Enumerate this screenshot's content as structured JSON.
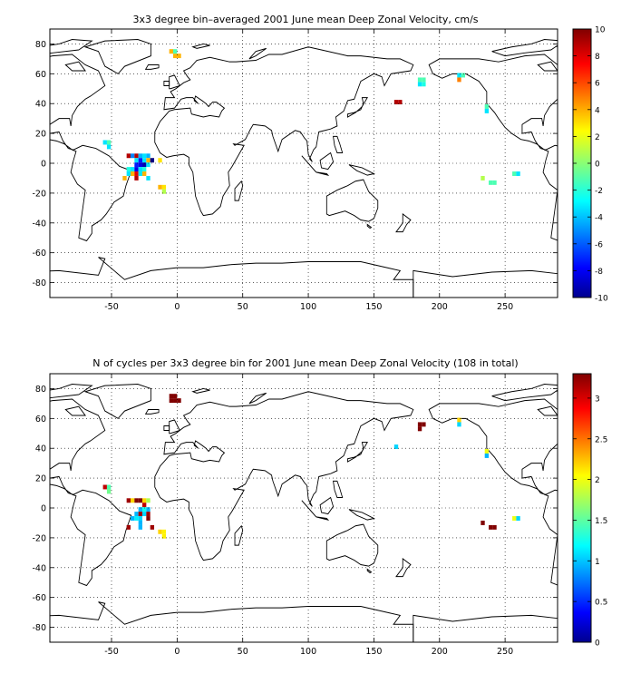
{
  "panels": [
    {
      "title": "3x3 degree bin–averaged 2001 June mean Deep Zonal Velocity, cm/s",
      "colorbar": {
        "min": -10,
        "max": 10,
        "ticks": [
          "10",
          "8",
          "6",
          "4",
          "2",
          "0",
          "-2",
          "-4",
          "-6",
          "-8",
          "-10"
        ]
      }
    },
    {
      "title": "N of cycles per 3x3 degree bin for 2001 June mean Deep Zonal Velocity (108 in total)",
      "colorbar": {
        "min": 0,
        "max": 3.3,
        "ticks": [
          "3",
          "2.5",
          "2",
          "1.5",
          "1",
          "0.5",
          "0"
        ]
      }
    }
  ],
  "axes": {
    "xticks": [
      "-50",
      "0",
      "50",
      "100",
      "150",
      "200",
      "250"
    ],
    "yticks": [
      "80",
      "60",
      "40",
      "20",
      "0",
      "-20",
      "-40",
      "-60",
      "-80"
    ],
    "xlim": [
      -97,
      290
    ],
    "ylim": [
      -90,
      90
    ],
    "grid": "dotted"
  },
  "chart_data": [
    {
      "type": "heatmap",
      "title": "3x3 degree bin–averaged 2001 June mean Deep Zonal Velocity, cm/s",
      "xlabel": "",
      "ylabel": "",
      "xlim": [
        -97,
        290
      ],
      "ylim": [
        -90,
        90
      ],
      "grid": true,
      "colorbar": {
        "min": -10,
        "max": 10,
        "label": ""
      },
      "bins": [
        {
          "lon": -4.5,
          "lat": 75,
          "v": 4
        },
        {
          "lon": -1.5,
          "lat": 72,
          "v": 4
        },
        {
          "lon": -1.5,
          "lat": 75,
          "v": -1
        },
        {
          "lon": 1.5,
          "lat": 72,
          "v": 4
        },
        {
          "lon": -55,
          "lat": 14,
          "v": -3
        },
        {
          "lon": -52,
          "lat": 11,
          "v": -3
        },
        {
          "lon": -52,
          "lat": 14,
          "v": -1
        },
        {
          "lon": -37,
          "lat": 5,
          "v": 9
        },
        {
          "lon": -34,
          "lat": 5,
          "v": -5
        },
        {
          "lon": -31,
          "lat": 5,
          "v": 9
        },
        {
          "lon": -28,
          "lat": 5,
          "v": -4
        },
        {
          "lon": -25,
          "lat": 5,
          "v": -3
        },
        {
          "lon": -22,
          "lat": 5,
          "v": -4
        },
        {
          "lon": -31,
          "lat": 2,
          "v": -3
        },
        {
          "lon": -28,
          "lat": 2,
          "v": -7
        },
        {
          "lon": -25,
          "lat": 2,
          "v": -3
        },
        {
          "lon": -22,
          "lat": 2,
          "v": 4
        },
        {
          "lon": -19,
          "lat": 2,
          "v": -10
        },
        {
          "lon": -31,
          "lat": -1,
          "v": -7
        },
        {
          "lon": -28,
          "lat": -1,
          "v": -8
        },
        {
          "lon": -25,
          "lat": -1,
          "v": -9
        },
        {
          "lon": -22,
          "lat": -1,
          "v": -3
        },
        {
          "lon": -37,
          "lat": -4,
          "v": -2
        },
        {
          "lon": -34,
          "lat": -4,
          "v": -3
        },
        {
          "lon": -31,
          "lat": -4,
          "v": -8
        },
        {
          "lon": -28,
          "lat": -4,
          "v": -3
        },
        {
          "lon": -25,
          "lat": -4,
          "v": -2
        },
        {
          "lon": -37,
          "lat": -7,
          "v": -3
        },
        {
          "lon": -34,
          "lat": -7,
          "v": 4
        },
        {
          "lon": -31,
          "lat": -7,
          "v": 8
        },
        {
          "lon": -28,
          "lat": -7,
          "v": -3
        },
        {
          "lon": -25,
          "lat": -7,
          "v": 4
        },
        {
          "lon": -40,
          "lat": -10,
          "v": 4
        },
        {
          "lon": -31,
          "lat": -10,
          "v": 9
        },
        {
          "lon": -22,
          "lat": -10,
          "v": -3
        },
        {
          "lon": -13,
          "lat": 2,
          "v": 3
        },
        {
          "lon": -10,
          "lat": -16,
          "v": 3
        },
        {
          "lon": -13,
          "lat": -16,
          "v": 4
        },
        {
          "lon": -10,
          "lat": -19,
          "v": 1
        },
        {
          "lon": 167,
          "lat": 41,
          "v": 9
        },
        {
          "lon": 170,
          "lat": 41,
          "v": 9
        },
        {
          "lon": 185,
          "lat": 53,
          "v": -3
        },
        {
          "lon": 188,
          "lat": 53,
          "v": -2
        },
        {
          "lon": 185,
          "lat": 56,
          "v": -1
        },
        {
          "lon": 188,
          "lat": 56,
          "v": -1
        },
        {
          "lon": 215,
          "lat": 59,
          "v": -3
        },
        {
          "lon": 218,
          "lat": 59,
          "v": -1
        },
        {
          "lon": 215,
          "lat": 56,
          "v": 5
        },
        {
          "lon": 236,
          "lat": 38,
          "v": -1
        },
        {
          "lon": 236,
          "lat": 35,
          "v": -3
        },
        {
          "lon": 233,
          "lat": -10,
          "v": 1
        },
        {
          "lon": 239,
          "lat": -13,
          "v": -1
        },
        {
          "lon": 242,
          "lat": -13,
          "v": -1
        },
        {
          "lon": 257,
          "lat": -7,
          "v": -1
        },
        {
          "lon": 260,
          "lat": -7,
          "v": -3
        }
      ]
    },
    {
      "type": "heatmap",
      "title": "N of cycles per 3x3 degree bin for 2001 June mean Deep Zonal Velocity (108 in total)",
      "xlabel": "",
      "ylabel": "",
      "xlim": [
        -97,
        290
      ],
      "ylim": [
        -90,
        90
      ],
      "grid": true,
      "colorbar": {
        "min": 0,
        "max": 3.3,
        "label": ""
      },
      "bins": [
        {
          "lon": -4.5,
          "lat": 75,
          "v": 3.3
        },
        {
          "lon": -1.5,
          "lat": 75,
          "v": 3.3
        },
        {
          "lon": -4.5,
          "lat": 72,
          "v": 3.3
        },
        {
          "lon": -1.5,
          "lat": 72,
          "v": 3.3
        },
        {
          "lon": 1.5,
          "lat": 72,
          "v": 3.3
        },
        {
          "lon": -55,
          "lat": 14,
          "v": 3.1
        },
        {
          "lon": -52,
          "lat": 11,
          "v": 1.6
        },
        {
          "lon": -52,
          "lat": 14,
          "v": 1.5
        },
        {
          "lon": -37,
          "lat": 5,
          "v": 3.2
        },
        {
          "lon": -34,
          "lat": 5,
          "v": 2.2
        },
        {
          "lon": -31,
          "lat": 5,
          "v": 3.3
        },
        {
          "lon": -28,
          "lat": 5,
          "v": 3.3
        },
        {
          "lon": -25,
          "lat": 5,
          "v": 2.2
        },
        {
          "lon": -22,
          "lat": 5,
          "v": 1.8
        },
        {
          "lon": -25,
          "lat": 2,
          "v": 3.1
        },
        {
          "lon": -28,
          "lat": -1,
          "v": 1.0
        },
        {
          "lon": -25,
          "lat": -1,
          "v": 1.3
        },
        {
          "lon": -22,
          "lat": -1,
          "v": 1.0
        },
        {
          "lon": -31,
          "lat": -4,
          "v": 1.0
        },
        {
          "lon": -28,
          "lat": -4,
          "v": 3.2
        },
        {
          "lon": -25,
          "lat": -4,
          "v": 1.1
        },
        {
          "lon": -22,
          "lat": -4,
          "v": 3.2
        },
        {
          "lon": -34,
          "lat": -7,
          "v": 1.0
        },
        {
          "lon": -31,
          "lat": -7,
          "v": 1.2
        },
        {
          "lon": -28,
          "lat": -7,
          "v": 1.1
        },
        {
          "lon": -22,
          "lat": -7,
          "v": 3.3
        },
        {
          "lon": -37,
          "lat": -13,
          "v": 3.2
        },
        {
          "lon": -28,
          "lat": -10,
          "v": 1.0
        },
        {
          "lon": -28,
          "lat": -13,
          "v": 1.0
        },
        {
          "lon": -19,
          "lat": -13,
          "v": 3.2
        },
        {
          "lon": -13,
          "lat": -16,
          "v": 2.2
        },
        {
          "lon": -10,
          "lat": -16,
          "v": 2.1
        },
        {
          "lon": -10,
          "lat": -19,
          "v": 2.1
        },
        {
          "lon": 167,
          "lat": 41,
          "v": 1.1
        },
        {
          "lon": 185,
          "lat": 53,
          "v": 3.3
        },
        {
          "lon": 185,
          "lat": 56,
          "v": 3.3
        },
        {
          "lon": 188,
          "lat": 56,
          "v": 3.3
        },
        {
          "lon": 215,
          "lat": 59,
          "v": 2.2
        },
        {
          "lon": 215,
          "lat": 56,
          "v": 1.1
        },
        {
          "lon": 236,
          "lat": 38,
          "v": 2.0
        },
        {
          "lon": 236,
          "lat": 35,
          "v": 1.0
        },
        {
          "lon": 233,
          "lat": -10,
          "v": 3.3
        },
        {
          "lon": 239,
          "lat": -13,
          "v": 3.3
        },
        {
          "lon": 242,
          "lat": -13,
          "v": 3.3
        },
        {
          "lon": 257,
          "lat": -7,
          "v": 2.0
        },
        {
          "lon": 260,
          "lat": -7,
          "v": 1.1
        }
      ]
    }
  ]
}
